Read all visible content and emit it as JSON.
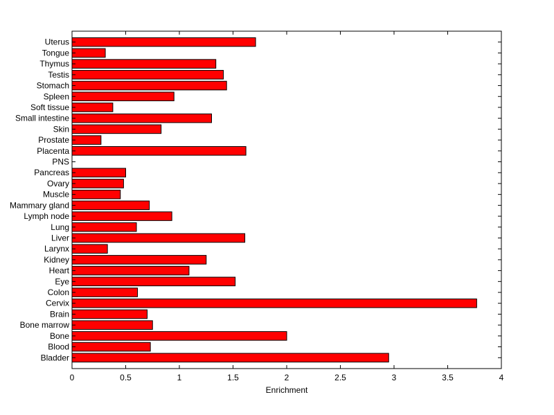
{
  "chart_data": {
    "type": "bar",
    "orientation": "horizontal",
    "title": "",
    "xlabel": "Enrichment",
    "ylabel": "",
    "xlim": [
      0,
      4
    ],
    "xticks": [
      0,
      0.5,
      1,
      1.5,
      2,
      2.5,
      3,
      3.5,
      4
    ],
    "xtick_labels": [
      "0",
      "0.5",
      "1",
      "1.5",
      "2",
      "2.5",
      "3",
      "3.5",
      "4"
    ],
    "grid": false,
    "legend": "none",
    "bar_color": "#ff0000",
    "edge_color": "#000000",
    "categories": [
      "Bladder",
      "Blood",
      "Bone",
      "Bone marrow",
      "Brain",
      "Cervix",
      "Colon",
      "Eye",
      "Heart",
      "Kidney",
      "Larynx",
      "Liver",
      "Lung",
      "Lymph node",
      "Mammary gland",
      "Muscle",
      "Ovary",
      "Pancreas",
      "PNS",
      "Placenta",
      "Prostate",
      "Skin",
      "Small intestine",
      "Soft tissue",
      "Spleen",
      "Stomach",
      "Testis",
      "Thymus",
      "Tongue",
      "Uterus"
    ],
    "values": [
      2.95,
      0.73,
      2.0,
      0.75,
      0.7,
      3.77,
      0.61,
      1.52,
      1.09,
      1.25,
      0.33,
      1.61,
      0.6,
      0.93,
      0.72,
      0.45,
      0.48,
      0.5,
      0.0,
      1.62,
      0.27,
      0.83,
      1.3,
      0.38,
      0.95,
      1.44,
      1.41,
      1.34,
      0.31,
      1.71
    ]
  }
}
